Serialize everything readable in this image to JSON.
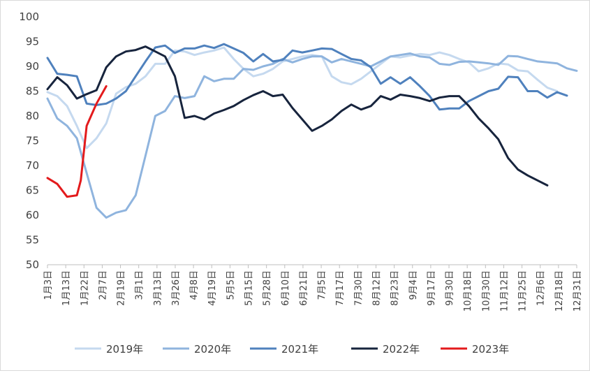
{
  "chart_data": {
    "type": "line",
    "title": "",
    "xlabel": "",
    "ylabel": "",
    "ylim": [
      50,
      100
    ],
    "y_ticks": [
      "50",
      "55",
      "60",
      "65",
      "70",
      "75",
      "80",
      "85",
      "90",
      "95",
      "100"
    ],
    "grid": false,
    "legend_position": "bottom",
    "x_ticks": [
      "1月3日",
      "1月13日",
      "1月22日",
      "2月7日",
      "2月19日",
      "3月1日",
      "3月13日",
      "3月26日",
      "4月8日",
      "4月19日",
      "5月5日",
      "5月15日",
      "5月28日",
      "6月10日",
      "6月21日",
      "7月5日",
      "7月17日",
      "7月30日",
      "8月12日",
      "8月23日",
      "9月4日",
      "9月17日",
      "9月30日",
      "10月18日",
      "10月30日",
      "11月12日",
      "11月25日",
      "12月6日",
      "12月18日",
      "12月31日"
    ],
    "series": [
      {
        "name": "2019年",
        "color": "#c5d9ef",
        "points": [
          [
            0,
            84.8
          ],
          [
            1,
            84
          ],
          [
            2,
            82
          ],
          [
            3,
            78
          ],
          [
            4,
            73.5
          ],
          [
            5,
            75.5
          ],
          [
            6,
            78.5
          ],
          [
            7,
            84.5
          ],
          [
            8,
            85.8
          ],
          [
            9,
            86.5
          ],
          [
            10,
            88
          ],
          [
            11,
            90.5
          ],
          [
            12,
            90.5
          ],
          [
            13,
            93.2
          ],
          [
            14,
            93
          ],
          [
            15,
            92.3
          ],
          [
            16,
            92.8
          ],
          [
            17,
            93.2
          ],
          [
            18,
            93.8
          ],
          [
            19,
            91.5
          ],
          [
            20,
            89.5
          ],
          [
            21,
            88
          ],
          [
            22,
            88.5
          ],
          [
            23,
            89.5
          ],
          [
            24,
            91
          ],
          [
            25,
            91.5
          ],
          [
            26,
            92
          ],
          [
            27,
            92.3
          ],
          [
            28,
            92
          ],
          [
            29,
            88
          ],
          [
            30,
            86.8
          ],
          [
            31,
            86.4
          ],
          [
            32,
            87.5
          ],
          [
            33,
            89
          ],
          [
            34,
            90.5
          ],
          [
            35,
            92
          ],
          [
            36,
            91.8
          ],
          [
            37,
            92.2
          ],
          [
            38,
            92.5
          ],
          [
            39,
            92.3
          ],
          [
            40,
            92.8
          ],
          [
            41,
            92.3
          ],
          [
            42,
            91.5
          ],
          [
            43,
            90.8
          ],
          [
            44,
            89
          ],
          [
            45,
            89.6
          ],
          [
            46,
            90.6
          ],
          [
            47,
            90.4
          ],
          [
            48,
            89.2
          ],
          [
            49,
            89
          ],
          [
            50,
            87.3
          ],
          [
            51,
            85.7
          ],
          [
            52,
            85
          ]
        ]
      },
      {
        "name": "2020年",
        "color": "#8fb4de",
        "points": [
          [
            0,
            83.5
          ],
          [
            1,
            79.5
          ],
          [
            2,
            78
          ],
          [
            3,
            75.5
          ],
          [
            4,
            68.5
          ],
          [
            5,
            61.5
          ],
          [
            6,
            59.5
          ],
          [
            7,
            60.5
          ],
          [
            8,
            61
          ],
          [
            9,
            64
          ],
          [
            10,
            72
          ],
          [
            11,
            80
          ],
          [
            12,
            81
          ],
          [
            13,
            84
          ],
          [
            14,
            83.6
          ],
          [
            15,
            84
          ],
          [
            16,
            88
          ],
          [
            17,
            87
          ],
          [
            18,
            87.5
          ],
          [
            19,
            87.5
          ],
          [
            20,
            89.5
          ],
          [
            21,
            89.3
          ],
          [
            22,
            90
          ],
          [
            23,
            90.5
          ],
          [
            24,
            91.5
          ],
          [
            25,
            90.8
          ],
          [
            26,
            91.5
          ],
          [
            27,
            92
          ],
          [
            28,
            92
          ],
          [
            29,
            90.8
          ],
          [
            30,
            91.5
          ],
          [
            31,
            91
          ],
          [
            32,
            90.5
          ],
          [
            33,
            90
          ],
          [
            34,
            91
          ],
          [
            35,
            92
          ],
          [
            36,
            92.3
          ],
          [
            37,
            92.6
          ],
          [
            38,
            92
          ],
          [
            39,
            91.8
          ],
          [
            40,
            90.5
          ],
          [
            41,
            90.3
          ],
          [
            42,
            90.9
          ],
          [
            43,
            91
          ],
          [
            44,
            90.8
          ],
          [
            45,
            90.6
          ],
          [
            46,
            90.3
          ],
          [
            47,
            92.1
          ],
          [
            48,
            92
          ],
          [
            49,
            91.5
          ],
          [
            50,
            91
          ],
          [
            51,
            90.8
          ],
          [
            52,
            90.6
          ],
          [
            53,
            89.6
          ],
          [
            54,
            89.1
          ]
        ]
      },
      {
        "name": "2021年",
        "color": "#4f81bd",
        "points": [
          [
            0,
            91.7
          ],
          [
            1,
            88.5
          ],
          [
            2,
            88.3
          ],
          [
            3,
            88
          ],
          [
            4,
            82.5
          ],
          [
            5,
            82.2
          ],
          [
            6,
            82.5
          ],
          [
            7,
            83.5
          ],
          [
            8,
            85
          ],
          [
            9,
            88
          ],
          [
            10,
            91
          ],
          [
            11,
            93.8
          ],
          [
            12,
            94.2
          ],
          [
            13,
            92.7
          ],
          [
            14,
            93.6
          ],
          [
            15,
            93.6
          ],
          [
            16,
            94.2
          ],
          [
            17,
            93.7
          ],
          [
            18,
            94.5
          ],
          [
            19,
            93.6
          ],
          [
            20,
            92.7
          ],
          [
            21,
            91
          ],
          [
            22,
            92.5
          ],
          [
            23,
            91
          ],
          [
            24,
            91.3
          ],
          [
            25,
            93.2
          ],
          [
            26,
            92.8
          ],
          [
            27,
            93.2
          ],
          [
            28,
            93.6
          ],
          [
            29,
            93.5
          ],
          [
            30,
            92.5
          ],
          [
            31,
            91.5
          ],
          [
            32,
            91.2
          ],
          [
            33,
            89.8
          ],
          [
            34,
            86.5
          ],
          [
            35,
            87.8
          ],
          [
            36,
            86.5
          ],
          [
            37,
            87.8
          ],
          [
            38,
            86
          ],
          [
            39,
            84
          ],
          [
            40,
            81.3
          ],
          [
            41,
            81.5
          ],
          [
            42,
            81.5
          ],
          [
            43,
            83
          ],
          [
            44,
            84
          ],
          [
            45,
            85
          ],
          [
            46,
            85.5
          ],
          [
            47,
            87.9
          ],
          [
            48,
            87.8
          ],
          [
            49,
            85
          ],
          [
            50,
            85
          ],
          [
            51,
            83.7
          ],
          [
            52,
            84.8
          ],
          [
            53,
            84.1
          ]
        ]
      },
      {
        "name": "2022年",
        "color": "#17243d",
        "points": [
          [
            0,
            85.4
          ],
          [
            1,
            87.8
          ],
          [
            2,
            86.2
          ],
          [
            3,
            83.5
          ],
          [
            4,
            84.4
          ],
          [
            5,
            85.2
          ],
          [
            6,
            89.8
          ],
          [
            7,
            92
          ],
          [
            8,
            93
          ],
          [
            9,
            93.3
          ],
          [
            10,
            94
          ],
          [
            11,
            93
          ],
          [
            12,
            92
          ],
          [
            13,
            88
          ],
          [
            14,
            79.6
          ],
          [
            15,
            80
          ],
          [
            16,
            79.3
          ],
          [
            17,
            80.5
          ],
          [
            18,
            81.2
          ],
          [
            19,
            82
          ],
          [
            20,
            83.2
          ],
          [
            21,
            84.2
          ],
          [
            22,
            85
          ],
          [
            23,
            84
          ],
          [
            24,
            84.3
          ],
          [
            25,
            81.6
          ],
          [
            26,
            79.3
          ],
          [
            27,
            77
          ],
          [
            28,
            78
          ],
          [
            29,
            79.3
          ],
          [
            30,
            81
          ],
          [
            31,
            82.3
          ],
          [
            32,
            81.3
          ],
          [
            33,
            82
          ],
          [
            34,
            84
          ],
          [
            35,
            83.3
          ],
          [
            36,
            84.3
          ],
          [
            37,
            84
          ],
          [
            38,
            83.6
          ],
          [
            39,
            83
          ],
          [
            40,
            83.7
          ],
          [
            41,
            84
          ],
          [
            42,
            84
          ],
          [
            43,
            82
          ],
          [
            44,
            79.5
          ],
          [
            45,
            77.5
          ],
          [
            46,
            75.3
          ],
          [
            47,
            71.5
          ],
          [
            48,
            69.2
          ],
          [
            49,
            68
          ],
          [
            50,
            67
          ],
          [
            51,
            66
          ]
        ]
      },
      {
        "name": "2023年",
        "color": "#e31a1c",
        "points": [
          [
            0,
            67.5
          ],
          [
            1,
            66.3
          ],
          [
            2,
            63.7
          ],
          [
            3,
            64
          ],
          [
            3.4,
            67
          ],
          [
            4,
            78
          ],
          [
            5,
            82.5
          ],
          [
            6,
            86
          ]
        ]
      }
    ]
  }
}
